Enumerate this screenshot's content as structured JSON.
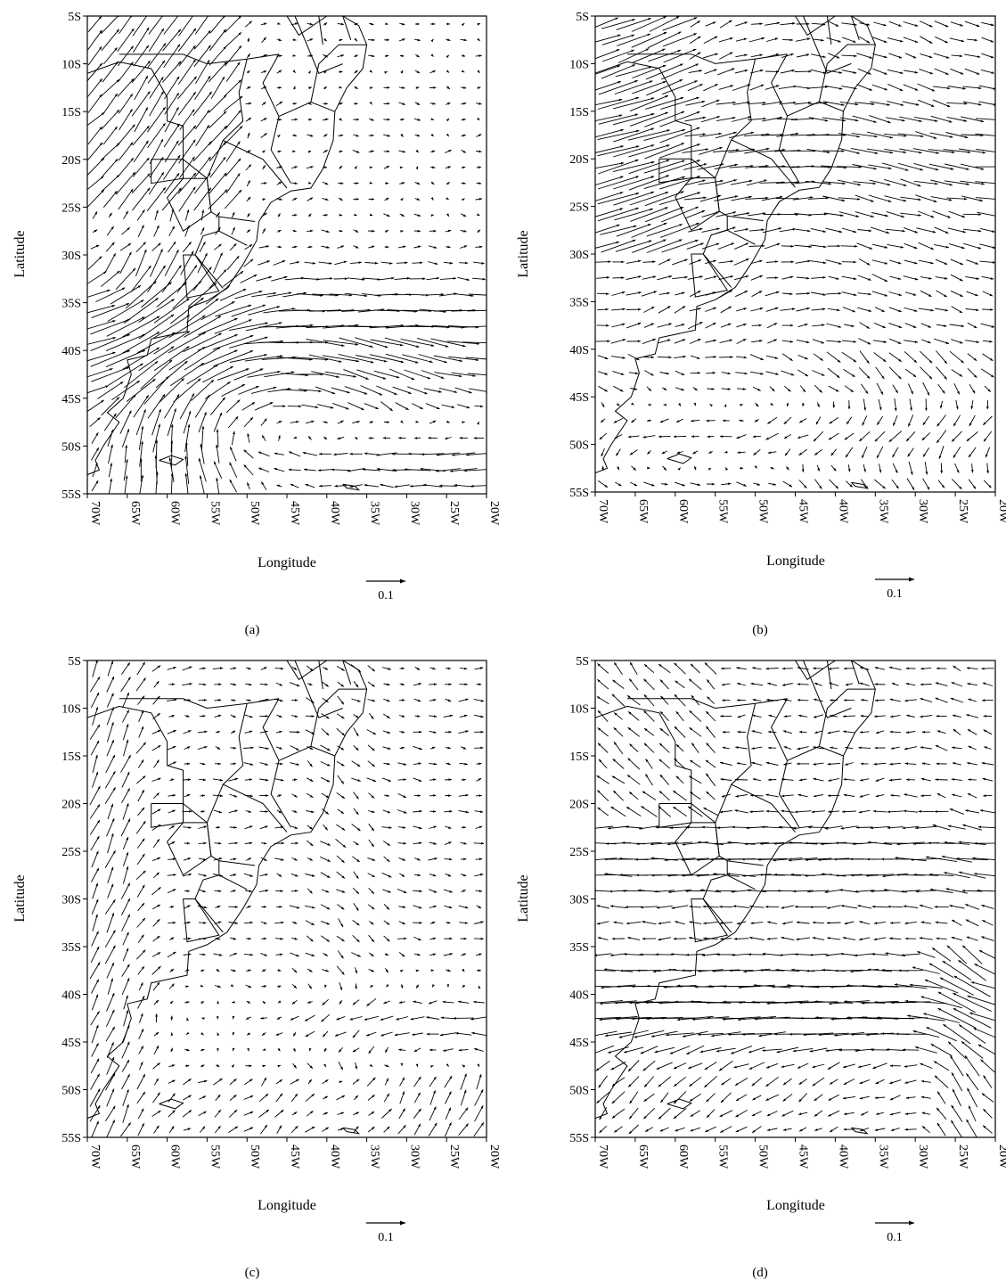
{
  "figure": {
    "panels": [
      {
        "caption": "(a)",
        "xlabel": "Longitude",
        "ylabel": "Latitude",
        "ref_vector_label": "0.1"
      },
      {
        "caption": "(b)",
        "xlabel": "Longitude",
        "ylabel": "Latitude",
        "ref_vector_label": "0.1"
      },
      {
        "caption": "(c)",
        "xlabel": "Longitude",
        "ylabel": "Latitude",
        "ref_vector_label": "0.1"
      },
      {
        "caption": "(d)",
        "xlabel": "Longitude",
        "ylabel": "Latitude",
        "ref_vector_label": "0.1"
      }
    ],
    "lat_ticks": [
      "5S",
      "10S",
      "15S",
      "20S",
      "25S",
      "30S",
      "35S",
      "40S",
      "45S",
      "50S",
      "55S"
    ],
    "lon_ticks": [
      "70W",
      "65W",
      "60W",
      "55W",
      "50W",
      "45W",
      "40W",
      "35W",
      "30W",
      "25W",
      "20W"
    ],
    "lat_range": [
      -55,
      -5
    ],
    "lon_range": [
      -70,
      -20
    ],
    "reference_vector_magnitude": 0.1,
    "colors": {
      "frame": "#000000",
      "vectors": "#000000",
      "coast": "#000000",
      "background": "#ffffff"
    }
  }
}
